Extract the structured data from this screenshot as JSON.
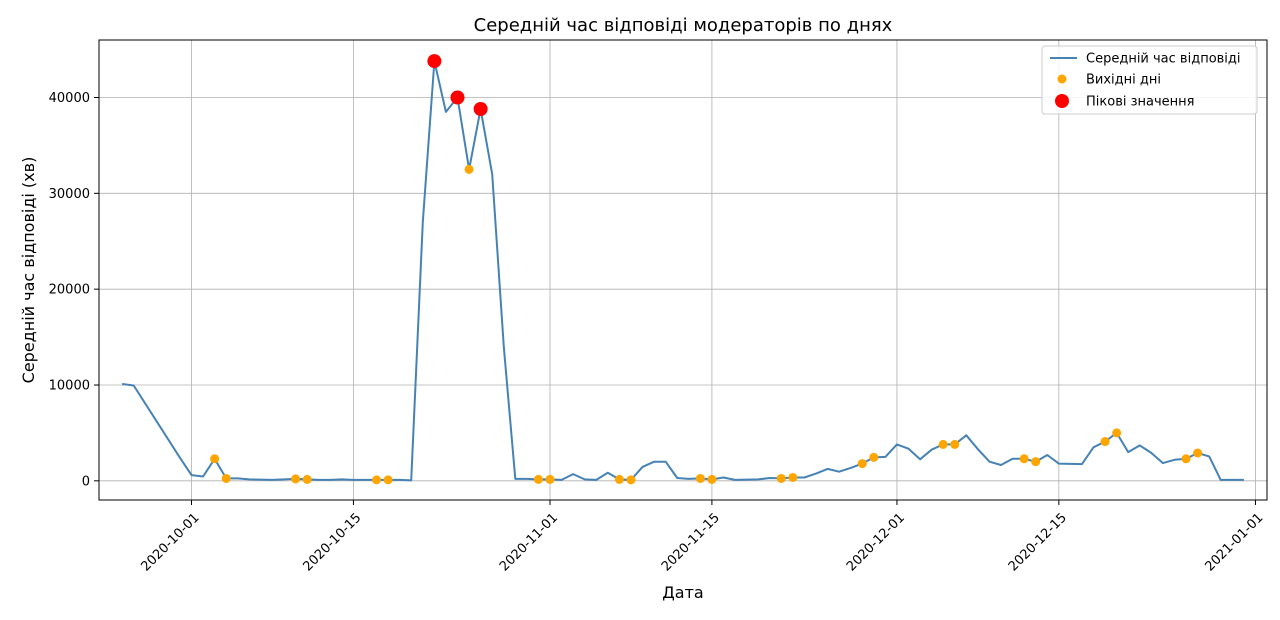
{
  "chart_data": {
    "type": "line",
    "title": "Середній час відповіді модераторів по днях",
    "xlabel": "Дата",
    "ylabel": "Середній час відповіді (хв)",
    "xlim": [
      "2020-09-23",
      "2021-01-02"
    ],
    "ylim": [
      -2000,
      46000
    ],
    "grid": true,
    "legend_position": "top-right",
    "x_ticks": [
      "2020-10-01",
      "2020-10-15",
      "2020-11-01",
      "2020-11-15",
      "2020-12-01",
      "2020-12-15",
      "2021-01-01"
    ],
    "y_ticks": [
      0,
      10000,
      20000,
      30000,
      40000
    ],
    "colors": {
      "line": "#4682b4",
      "weekend": "#ffa500",
      "peak": "#ff0000",
      "grid": "#b0b0b0"
    },
    "series": [
      {
        "name": "Середній час відповіді",
        "kind": "line",
        "points": [
          [
            "2020-09-25",
            10100
          ],
          [
            "2020-09-26",
            9950
          ],
          [
            "2020-09-30",
            2400
          ],
          [
            "2020-10-01",
            600
          ],
          [
            "2020-10-02",
            450
          ],
          [
            "2020-10-03",
            2300
          ],
          [
            "2020-10-04",
            250
          ],
          [
            "2020-10-05",
            250
          ],
          [
            "2020-10-06",
            150
          ],
          [
            "2020-10-08",
            100
          ],
          [
            "2020-10-10",
            200
          ],
          [
            "2020-10-11",
            150
          ],
          [
            "2020-10-12",
            100
          ],
          [
            "2020-10-13",
            100
          ],
          [
            "2020-10-14",
            150
          ],
          [
            "2020-10-15",
            100
          ],
          [
            "2020-10-17",
            100
          ],
          [
            "2020-10-18",
            100
          ],
          [
            "2020-10-19",
            100
          ],
          [
            "2020-10-20",
            50
          ],
          [
            "2020-10-21",
            27000
          ],
          [
            "2020-10-22",
            43800
          ],
          [
            "2020-10-23",
            38500
          ],
          [
            "2020-10-24",
            40000
          ],
          [
            "2020-10-25",
            32500
          ],
          [
            "2020-10-26",
            38800
          ],
          [
            "2020-10-27",
            32000
          ],
          [
            "2020-10-28",
            14000
          ],
          [
            "2020-10-29",
            200
          ],
          [
            "2020-10-30",
            200
          ],
          [
            "2020-10-31",
            150
          ],
          [
            "2020-11-01",
            150
          ],
          [
            "2020-11-02",
            100
          ],
          [
            "2020-11-03",
            700
          ],
          [
            "2020-11-04",
            150
          ],
          [
            "2020-11-05",
            100
          ],
          [
            "2020-11-06",
            850
          ],
          [
            "2020-11-07",
            150
          ],
          [
            "2020-11-08",
            100
          ],
          [
            "2020-11-09",
            1450
          ],
          [
            "2020-11-10",
            2000
          ],
          [
            "2020-11-11",
            2000
          ],
          [
            "2020-11-12",
            300
          ],
          [
            "2020-11-13",
            200
          ],
          [
            "2020-11-14",
            250
          ],
          [
            "2020-11-15",
            150
          ],
          [
            "2020-11-16",
            350
          ],
          [
            "2020-11-17",
            100
          ],
          [
            "2020-11-19",
            150
          ],
          [
            "2020-11-20",
            300
          ],
          [
            "2020-11-21",
            250
          ],
          [
            "2020-11-22",
            350
          ],
          [
            "2020-11-23",
            350
          ],
          [
            "2020-11-24",
            750
          ],
          [
            "2020-11-25",
            1250
          ],
          [
            "2020-11-26",
            950
          ],
          [
            "2020-11-27",
            1350
          ],
          [
            "2020-11-28",
            1800
          ],
          [
            "2020-11-29",
            2450
          ],
          [
            "2020-11-30",
            2500
          ],
          [
            "2020-12-01",
            3800
          ],
          [
            "2020-12-02",
            3350
          ],
          [
            "2020-12-03",
            2250
          ],
          [
            "2020-12-04",
            3250
          ],
          [
            "2020-12-05",
            3800
          ],
          [
            "2020-12-06",
            3800
          ],
          [
            "2020-12-07",
            4750
          ],
          [
            "2020-12-08",
            3300
          ],
          [
            "2020-12-09",
            2000
          ],
          [
            "2020-12-10",
            1650
          ],
          [
            "2020-12-11",
            2300
          ],
          [
            "2020-12-12",
            2300
          ],
          [
            "2020-12-13",
            2000
          ],
          [
            "2020-12-14",
            2700
          ],
          [
            "2020-12-15",
            1800
          ],
          [
            "2020-12-17",
            1750
          ],
          [
            "2020-12-18",
            3500
          ],
          [
            "2020-12-19",
            4100
          ],
          [
            "2020-12-20",
            5000
          ],
          [
            "2020-12-21",
            3000
          ],
          [
            "2020-12-22",
            3700
          ],
          [
            "2020-12-23",
            2900
          ],
          [
            "2020-12-24",
            1850
          ],
          [
            "2020-12-25",
            2200
          ],
          [
            "2020-12-26",
            2300
          ],
          [
            "2020-12-27",
            2900
          ],
          [
            "2020-12-28",
            2550
          ],
          [
            "2020-12-29",
            100
          ],
          [
            "2020-12-31",
            100
          ]
        ]
      },
      {
        "name": "Вихідні дні",
        "kind": "scatter",
        "points": [
          [
            "2020-10-03",
            2300
          ],
          [
            "2020-10-04",
            250
          ],
          [
            "2020-10-10",
            200
          ],
          [
            "2020-10-11",
            150
          ],
          [
            "2020-10-17",
            100
          ],
          [
            "2020-10-18",
            100
          ],
          [
            "2020-10-25",
            32500
          ],
          [
            "2020-10-31",
            150
          ],
          [
            "2020-11-01",
            150
          ],
          [
            "2020-11-07",
            150
          ],
          [
            "2020-11-08",
            100
          ],
          [
            "2020-11-14",
            250
          ],
          [
            "2020-11-15",
            150
          ],
          [
            "2020-11-21",
            250
          ],
          [
            "2020-11-22",
            350
          ],
          [
            "2020-11-28",
            1800
          ],
          [
            "2020-11-29",
            2450
          ],
          [
            "2020-12-05",
            3800
          ],
          [
            "2020-12-06",
            3800
          ],
          [
            "2020-12-12",
            2300
          ],
          [
            "2020-12-13",
            2000
          ],
          [
            "2020-12-19",
            4100
          ],
          [
            "2020-12-20",
            5000
          ],
          [
            "2020-12-26",
            2300
          ],
          [
            "2020-12-27",
            2900
          ]
        ]
      },
      {
        "name": "Пікові значення",
        "kind": "scatter",
        "points": [
          [
            "2020-10-22",
            43800
          ],
          [
            "2020-10-24",
            40000
          ],
          [
            "2020-10-26",
            38800
          ]
        ]
      }
    ]
  }
}
